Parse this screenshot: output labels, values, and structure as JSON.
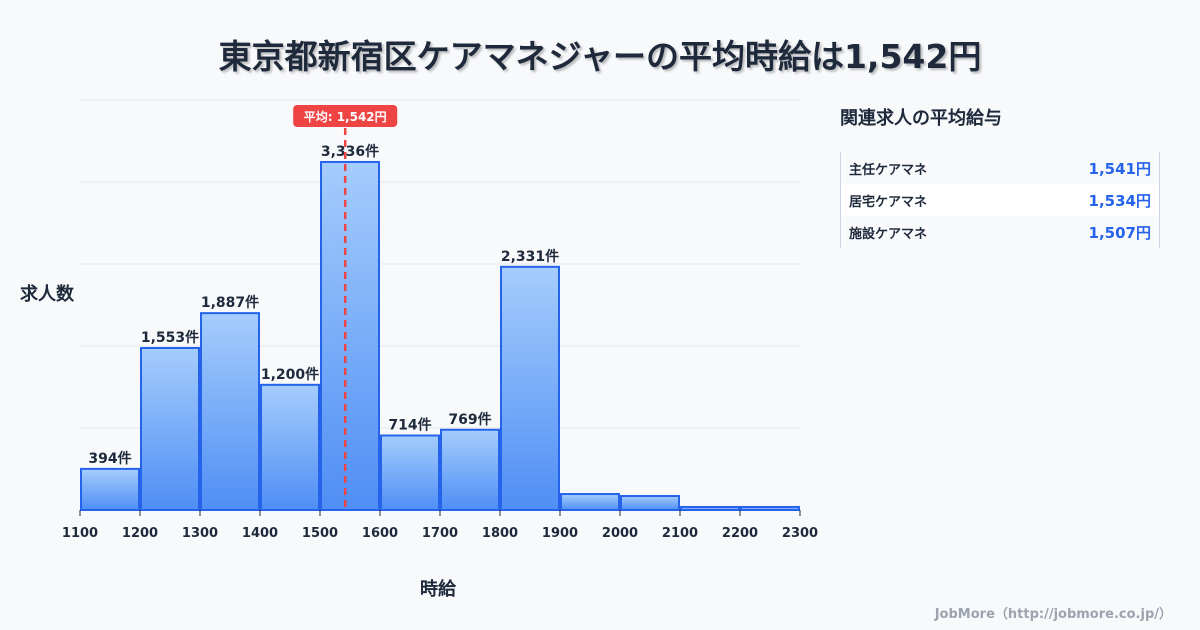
{
  "title": "東京都新宿区ケアマネジャーの平均時給は1,542円",
  "chart_data": {
    "type": "bar",
    "title": "東京都新宿区ケアマネジャーの平均時給は1,542円",
    "xlabel": "時給",
    "ylabel": "求人数",
    "bin_edges": [
      1100,
      1200,
      1300,
      1400,
      1500,
      1600,
      1700,
      1800,
      1900,
      2000,
      2100,
      2200,
      2300
    ],
    "values": [
      394,
      1553,
      1887,
      1200,
      3336,
      714,
      769,
      2331,
      153,
      134,
      29,
      29
    ],
    "data_labels": [
      "394件",
      "1,553件",
      "1,887件",
      "1,200件",
      "3,336件",
      "714件",
      "769件",
      "2,331件",
      "",
      "",
      "",
      ""
    ],
    "x_ticks": [
      "1100",
      "1200",
      "1300",
      "1400",
      "1500",
      "1600",
      "1700",
      "1800",
      "1900",
      "2000",
      "2100",
      "2200",
      "2300"
    ],
    "xlim": [
      1100,
      2300
    ],
    "ylim": [
      0,
      3930
    ],
    "grid": true,
    "mean": {
      "value": 1542,
      "label": "平均: 1,542円"
    },
    "colors": {
      "bar_top": "#a5cdfc",
      "bar_bottom": "#4f8ef5",
      "bar_edge": "#2563eb",
      "mean_line": "#ef4444"
    }
  },
  "panel": {
    "title": "関連求人の平均給与",
    "rows": [
      {
        "name": "主任ケアマネ",
        "value": "1,541円"
      },
      {
        "name": "居宅ケアマネ",
        "value": "1,534円"
      },
      {
        "name": "施設ケアマネ",
        "value": "1,507円"
      }
    ]
  },
  "credit": "JobMore（http://jobmore.co.jp/）"
}
